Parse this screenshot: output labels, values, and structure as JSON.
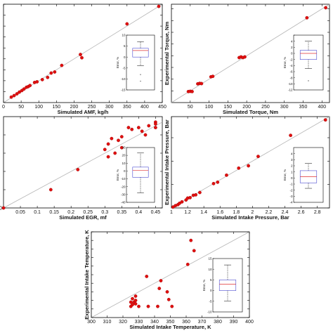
{
  "chart_data": [
    {
      "type": "scatter",
      "xlabel": "Simulated AMF, kg/h",
      "ylabel": "",
      "xlim": [
        0,
        450
      ],
      "ylim": [
        0,
        450
      ],
      "xticks": [
        0,
        50,
        100,
        150,
        200,
        250,
        300,
        350,
        400,
        450
      ],
      "yticks": [
        0,
        50,
        100,
        150,
        200,
        250,
        300,
        350,
        400,
        450
      ],
      "x_tick_labels": [
        "0",
        "50",
        "100",
        "150",
        "200",
        "250",
        "300",
        "350",
        "400",
        "450"
      ],
      "y_tick_labels": [
        "",
        "",
        "",
        "",
        "",
        "",
        "",
        "",
        "",
        ""
      ],
      "series": [
        {
          "points": [
            [
              22,
              25
            ],
            [
              30,
              32
            ],
            [
              38,
              40
            ],
            [
              45,
              48
            ],
            [
              52,
              55
            ],
            [
              58,
              62
            ],
            [
              65,
              70
            ],
            [
              70,
              73
            ],
            [
              75,
              78
            ],
            [
              88,
              92
            ],
            [
              95,
              95
            ],
            [
              110,
              105
            ],
            [
              125,
              115
            ],
            [
              135,
              135
            ],
            [
              145,
              140
            ],
            [
              165,
              170
            ],
            [
              218,
              220
            ],
            [
              222,
              205
            ],
            [
              350,
              360
            ],
            [
              440,
              440
            ]
          ]
        }
      ],
      "inset": {
        "type": "box",
        "ylabel": "Error, %",
        "ylim": [
          -15,
          10
        ],
        "yticks": [
          -15,
          -10,
          -5,
          0,
          5,
          10
        ],
        "ytick_labels": [
          "-15",
          "-10",
          "-5",
          "0",
          "5",
          "10"
        ],
        "box": {
          "whisker_low": -4,
          "q1": 0,
          "median": 3,
          "q3": 4,
          "whisker_high": 7
        },
        "outliers": [
          -8,
          -11
        ]
      }
    },
    {
      "type": "scatter",
      "xlabel": "Simulated Torque, Nm",
      "ylabel": "Experimental Torque, Nm",
      "xlim": [
        0,
        420
      ],
      "ylim": [
        0,
        420
      ],
      "xticks": [
        50,
        100,
        150,
        200,
        250,
        300,
        350,
        400
      ],
      "yticks": [
        50,
        100,
        150,
        200,
        250,
        300,
        350,
        400
      ],
      "x_tick_labels": [
        "50",
        "100",
        "150",
        "200",
        "250",
        "300",
        "350",
        "400"
      ],
      "y_tick_labels": [
        "",
        "",
        "",
        "",
        "",
        "",
        "",
        ""
      ],
      "series": [
        {
          "points": [
            [
              45,
              47
            ],
            [
              50,
              48
            ],
            [
              55,
              47
            ],
            [
              70,
              80
            ],
            [
              75,
              82
            ],
            [
              80,
              81
            ],
            [
              105,
              110
            ],
            [
              110,
              112
            ],
            [
              180,
              192
            ],
            [
              185,
              195
            ],
            [
              190,
              192
            ],
            [
              195,
              195
            ],
            [
              360,
              362
            ],
            [
              410,
              405
            ]
          ]
        }
      ],
      "inset": {
        "type": "box",
        "ylabel": "Error, %",
        "ylim": [
          -12,
          6
        ],
        "yticks": [
          -12,
          -10,
          -8,
          -6,
          -4,
          -2,
          0,
          2,
          4,
          6
        ],
        "ytick_labels": [
          "-12",
          "-10",
          "-8",
          "-6",
          "-4",
          "-2",
          "0",
          "2",
          "4",
          ""
        ],
        "box": {
          "whisker_low": -5,
          "q1": -2,
          "median": 0,
          "q3": 1,
          "whisker_high": 4
        },
        "outliers": [
          -9
        ]
      }
    },
    {
      "type": "scatter",
      "xlabel": "Simulated EGR, mf",
      "ylabel": "",
      "xlim": [
        0,
        0.47
      ],
      "ylim": [
        0,
        0.5
      ],
      "xticks": [
        0.05,
        0.1,
        0.15,
        0.2,
        0.25,
        0.3,
        0.35,
        0.4,
        0.45
      ],
      "yticks": [
        0,
        0.1,
        0.2,
        0.3,
        0.4
      ],
      "x_tick_labels": [
        "0.05",
        "0.1",
        "0.15",
        "0.2",
        "0.25",
        "0.3",
        "0.35",
        "0.4",
        "0.45"
      ],
      "y_tick_labels": [
        "0",
        "",
        "",
        "",
        ""
      ],
      "series": [
        {
          "points": [
            [
              0.0,
              0.0
            ],
            [
              0.14,
              0.1
            ],
            [
              0.22,
              0.21
            ],
            [
              0.3,
              0.32
            ],
            [
              0.31,
              0.28
            ],
            [
              0.31,
              0.35
            ],
            [
              0.32,
              0.38
            ],
            [
              0.33,
              0.3
            ],
            [
              0.34,
              0.37
            ],
            [
              0.35,
              0.33
            ],
            [
              0.35,
              0.39
            ],
            [
              0.37,
              0.44
            ],
            [
              0.38,
              0.43
            ],
            [
              0.4,
              0.44
            ],
            [
              0.41,
              0.42
            ],
            [
              0.42,
              0.4
            ],
            [
              0.43,
              0.45
            ],
            [
              0.45,
              0.44
            ],
            [
              0.45,
              0.47
            ],
            [
              0.45,
              0.46
            ]
          ]
        }
      ],
      "inset": {
        "type": "box",
        "ylabel": "Error, %",
        "ylim": [
          -40,
          30
        ],
        "yticks": [
          -40,
          -30,
          -20,
          -10,
          0,
          10,
          20,
          30
        ],
        "ytick_labels": [
          "-40",
          "-30",
          "-20",
          "-10",
          "0",
          "10",
          "20",
          "30"
        ],
        "box": {
          "whisker_low": -28,
          "q1": -8,
          "median": 1,
          "q3": 5,
          "whisker_high": 23
        },
        "outliers": []
      }
    },
    {
      "type": "scatter",
      "xlabel": "Simulated Intake Pressure, Bar",
      "ylabel": "Experimental Intake Pressure, Bar",
      "xlim": [
        1,
        2.95
      ],
      "ylim": [
        1,
        2.95
      ],
      "xticks": [
        1,
        1.2,
        1.4,
        1.6,
        1.8,
        2,
        2.2,
        2.4,
        2.6,
        2.8
      ],
      "yticks": [
        1,
        1.5,
        2,
        2.5
      ],
      "x_tick_labels": [
        "1",
        "1.2",
        "1.4",
        "1.6",
        "1.8",
        "2",
        "2.2",
        "2.4",
        "2.6",
        "2.8"
      ],
      "y_tick_labels": [
        "",
        "",
        "",
        ""
      ],
      "series": [
        {
          "points": [
            [
              1.02,
              1.02
            ],
            [
              1.05,
              1.05
            ],
            [
              1.08,
              1.07
            ],
            [
              1.1,
              1.1
            ],
            [
              1.13,
              1.13
            ],
            [
              1.18,
              1.17
            ],
            [
              1.2,
              1.21
            ],
            [
              1.23,
              1.22
            ],
            [
              1.27,
              1.27
            ],
            [
              1.3,
              1.28
            ],
            [
              1.35,
              1.33
            ],
            [
              1.52,
              1.52
            ],
            [
              1.57,
              1.55
            ],
            [
              1.68,
              1.7
            ],
            [
              1.83,
              1.85
            ],
            [
              1.95,
              1.9
            ],
            [
              2.07,
              2.1
            ],
            [
              2.47,
              2.55
            ],
            [
              2.9,
              2.88
            ]
          ]
        }
      ],
      "inset": {
        "type": "box",
        "ylabel": "Error, %",
        "ylim": [
          -4,
          5
        ],
        "yticks": [
          -4,
          -3,
          -2,
          -1,
          0,
          1,
          2,
          3,
          4
        ],
        "ytick_labels": [
          "-4",
          "-3",
          "-2",
          "-1",
          "0",
          "1",
          "2",
          "3",
          "4"
        ],
        "box": {
          "whisker_low": -1.7,
          "q1": -0.8,
          "median": 0.2,
          "q3": 1.2,
          "whisker_high": 2.4
        },
        "outliers": []
      }
    },
    {
      "type": "scatter",
      "xlabel": "Simulated Intake Temperature, K",
      "ylabel": "Experimental Intake Temperature, K",
      "xlim": [
        300,
        400
      ],
      "ylim": [
        300,
        400
      ],
      "xticks": [
        300,
        310,
        320,
        330,
        340,
        350,
        360,
        370,
        380,
        390,
        400
      ],
      "yticks": [
        300,
        310,
        320,
        330,
        340,
        350,
        360,
        370,
        380,
        390,
        400
      ],
      "x_tick_labels": [
        "300",
        "310",
        "320",
        "330",
        "340",
        "350",
        "360",
        "370",
        "380",
        "390",
        "400"
      ],
      "y_tick_labels": [
        "",
        "",
        "",
        "",
        "",
        "",
        "",
        "",
        "",
        "",
        ""
      ],
      "series": [
        {
          "points": [
            [
              325,
              313
            ],
            [
              326,
              315
            ],
            [
              325,
              318
            ],
            [
              327,
              318
            ],
            [
              328,
              316
            ],
            [
              326,
              322
            ],
            [
              328,
              320
            ],
            [
              328,
              325
            ],
            [
              330,
              313
            ],
            [
              335,
              348
            ],
            [
              336,
              313
            ],
            [
              342,
              313
            ],
            [
              343,
              334
            ],
            [
              344,
              343
            ],
            [
              348,
              330
            ],
            [
              349,
              321
            ],
            [
              351,
              313
            ],
            [
              361,
              362
            ],
            [
              363,
              390
            ],
            [
              365,
              378
            ]
          ]
        }
      ],
      "inset": {
        "type": "box",
        "ylabel": "Error, %",
        "ylim": [
          -10,
          15
        ],
        "yticks": [
          -10,
          -5,
          0,
          5,
          10,
          15
        ],
        "ytick_labels": [
          "-10",
          "-5",
          "0",
          "5",
          "10",
          "15"
        ],
        "box": {
          "whisker_low": -5,
          "q1": 0,
          "median": 3,
          "q3": 5,
          "whisker_high": 12
        },
        "outliers": []
      }
    }
  ]
}
